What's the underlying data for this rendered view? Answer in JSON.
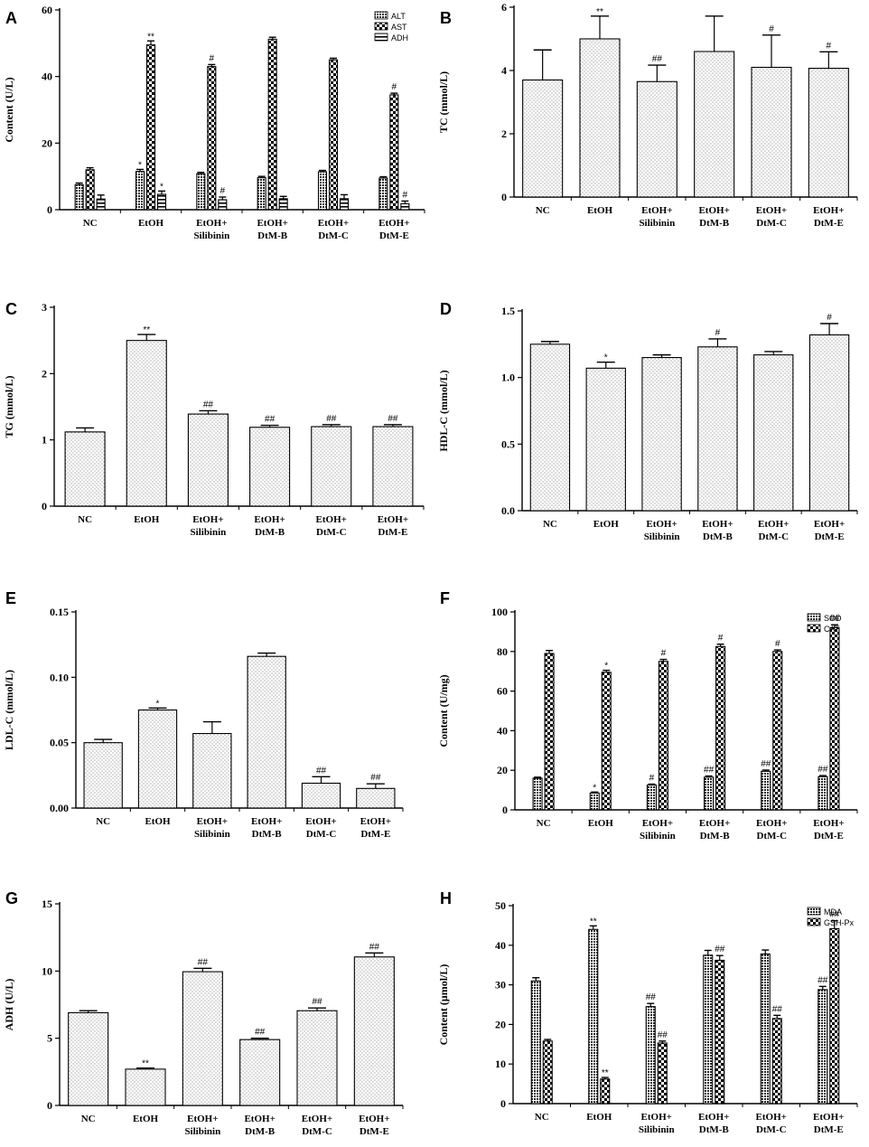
{
  "figure_title": "Figure panels A–H",
  "chart_data": [
    {
      "panel": "A",
      "type": "bar",
      "ylabel": "Content  (U/L)",
      "ylim": [
        0,
        60
      ],
      "yticks": [
        0,
        20,
        40,
        60
      ],
      "categories": [
        [
          "NC"
        ],
        [
          "EtOH"
        ],
        [
          "EtOH+",
          "Silibinin"
        ],
        [
          "EtOH+",
          "DtM-B"
        ],
        [
          "EtOH+",
          "DtM-C"
        ],
        [
          "EtOH+",
          "DtM-E"
        ]
      ],
      "series": [
        {
          "name": "ALT",
          "pattern": "dense",
          "values": [
            7.5,
            11.5,
            10.8,
            9.6,
            11.4,
            9.5
          ],
          "errors": [
            0.5,
            0.6,
            0.4,
            0.4,
            0.4,
            0.4
          ],
          "sig": [
            "",
            "*",
            "",
            "",
            "",
            ""
          ]
        },
        {
          "name": "AST",
          "pattern": "check",
          "values": [
            12.0,
            49.5,
            43.0,
            51.2,
            45.0,
            34.5
          ],
          "errors": [
            0.6,
            1.2,
            0.6,
            0.6,
            0.5,
            0.5
          ],
          "sig": [
            "",
            "**",
            "#",
            "",
            "",
            "#"
          ]
        },
        {
          "name": "ADH",
          "pattern": "stripe",
          "values": [
            3.2,
            4.6,
            3.0,
            3.3,
            3.3,
            1.8
          ],
          "errors": [
            1.2,
            1.0,
            0.8,
            0.7,
            1.2,
            0.8
          ],
          "sig": [
            "",
            "*",
            "#",
            "",
            "",
            "#"
          ]
        }
      ],
      "legend": [
        "ALT",
        "AST",
        "ADH"
      ]
    },
    {
      "panel": "B",
      "type": "bar",
      "ylabel": "TC (mmol/L)",
      "ylim": [
        0,
        6
      ],
      "yticks": [
        0,
        2,
        4,
        6
      ],
      "categories": [
        [
          "NC"
        ],
        [
          "EtOH"
        ],
        [
          "EtOH+",
          "Silibinin"
        ],
        [
          "EtOH+",
          "DtM-B"
        ],
        [
          "EtOH+",
          "DtM-C"
        ],
        [
          "EtOH+",
          "DtM-E"
        ]
      ],
      "series": [
        {
          "name": "TC",
          "pattern": "dots",
          "values": [
            3.7,
            5.0,
            3.65,
            4.6,
            4.1,
            4.07
          ],
          "errors": [
            0.95,
            0.72,
            0.52,
            1.12,
            1.02,
            0.52
          ],
          "sig": [
            "",
            "**",
            "##",
            "",
            "#",
            "#"
          ]
        }
      ],
      "legend": []
    },
    {
      "panel": "C",
      "type": "bar",
      "ylabel": "TG (mmol/L)",
      "ylim": [
        0,
        3
      ],
      "yticks": [
        0,
        1,
        2,
        3
      ],
      "categories": [
        [
          "NC"
        ],
        [
          "EtOH"
        ],
        [
          "EtOH+",
          "Silibinin"
        ],
        [
          "EtOH+",
          "DtM-B"
        ],
        [
          "EtOH+",
          "DtM-C"
        ],
        [
          "EtOH+",
          "DtM-E"
        ]
      ],
      "series": [
        {
          "name": "TG",
          "pattern": "dots",
          "values": [
            1.12,
            2.5,
            1.39,
            1.19,
            1.2,
            1.2
          ],
          "errors": [
            0.06,
            0.09,
            0.05,
            0.03,
            0.03,
            0.03
          ],
          "sig": [
            "",
            "**",
            "##",
            "##",
            "##",
            "##"
          ]
        }
      ],
      "legend": []
    },
    {
      "panel": "D",
      "type": "bar",
      "ylabel": "HDL-C (mmol/L)",
      "ylim": [
        0,
        1.5
      ],
      "yticks": [
        0.0,
        0.5,
        1.0,
        1.5
      ],
      "tick_format": 1,
      "categories": [
        [
          "NC"
        ],
        [
          "EtOH"
        ],
        [
          "EtOH+",
          "Silibinin"
        ],
        [
          "EtOH+",
          "DtM-B"
        ],
        [
          "EtOH+",
          "DtM-C"
        ],
        [
          "EtOH+",
          "DtM-E"
        ]
      ],
      "series": [
        {
          "name": "HDL-C",
          "pattern": "dots",
          "values": [
            1.25,
            1.07,
            1.15,
            1.23,
            1.17,
            1.32
          ],
          "errors": [
            0.02,
            0.045,
            0.02,
            0.06,
            0.025,
            0.085
          ],
          "sig": [
            "",
            "*",
            "",
            "#",
            "",
            "#"
          ]
        }
      ],
      "legend": []
    },
    {
      "panel": "E",
      "type": "bar",
      "ylabel": "LDL-C (mmol/L)",
      "ylim": [
        0,
        0.15
      ],
      "yticks": [
        0.0,
        0.05,
        0.1,
        0.15
      ],
      "tick_format": 2,
      "categories": [
        [
          "NC"
        ],
        [
          "EtOH"
        ],
        [
          "EtOH+",
          "Silibinin"
        ],
        [
          "EtOH+",
          "DtM-B"
        ],
        [
          "EtOH+",
          "DtM-C"
        ],
        [
          "EtOH+",
          "DtM-E"
        ]
      ],
      "series": [
        {
          "name": "LDL-C",
          "pattern": "dots",
          "values": [
            0.05,
            0.075,
            0.057,
            0.116,
            0.019,
            0.015
          ],
          "errors": [
            0.0025,
            0.0015,
            0.009,
            0.0025,
            0.005,
            0.0035
          ],
          "sig": [
            "",
            "*",
            "",
            "",
            "##",
            "##"
          ]
        }
      ],
      "legend": []
    },
    {
      "panel": "F",
      "type": "bar",
      "ylabel": "Content  (U/mg)",
      "ylim": [
        0,
        100
      ],
      "yticks": [
        0,
        20,
        40,
        60,
        80,
        100
      ],
      "categories": [
        [
          "NC"
        ],
        [
          "EtOH"
        ],
        [
          "EtOH+",
          "Silibinin"
        ],
        [
          "EtOH+",
          "DtM-B"
        ],
        [
          "EtOH+",
          "DtM-C"
        ],
        [
          "EtOH+",
          "DtM-E"
        ]
      ],
      "series": [
        {
          "name": "SOD",
          "pattern": "dense",
          "values": [
            16,
            8.5,
            12.5,
            16.5,
            19.5,
            16.8
          ],
          "errors": [
            0.5,
            0.5,
            0.5,
            0.6,
            0.6,
            0.5
          ],
          "sig": [
            "",
            "*",
            "#",
            "##",
            "##",
            "##"
          ]
        },
        {
          "name": "CAT",
          "pattern": "check",
          "values": [
            79,
            69.5,
            75,
            82.5,
            80,
            92
          ],
          "errors": [
            1.5,
            1.0,
            1.0,
            1.2,
            0.8,
            1.5
          ],
          "sig": [
            "",
            "*",
            "#",
            "#",
            "#",
            "##"
          ]
        }
      ],
      "legend": [
        "SOD",
        "CAT"
      ]
    },
    {
      "panel": "G",
      "type": "bar",
      "ylabel": "ADH  (U/L)",
      "ylim": [
        0,
        15
      ],
      "yticks": [
        0,
        5,
        10,
        15
      ],
      "categories": [
        [
          "NC"
        ],
        [
          "EtOH"
        ],
        [
          "EtOH+",
          "Silibinin"
        ],
        [
          "EtOH+",
          "DtM-B"
        ],
        [
          "EtOH+",
          "DtM-C"
        ],
        [
          "EtOH+",
          "DtM-E"
        ]
      ],
      "series": [
        {
          "name": "ADH",
          "pattern": "dots",
          "values": [
            6.9,
            2.7,
            9.95,
            4.9,
            7.05,
            11.05
          ],
          "errors": [
            0.15,
            0.08,
            0.25,
            0.1,
            0.2,
            0.3
          ],
          "sig": [
            "",
            "**",
            "##",
            "##",
            "##",
            "##"
          ]
        }
      ],
      "legend": []
    },
    {
      "panel": "H",
      "type": "bar",
      "ylabel": "Content  (μmol/L)",
      "ylim": [
        0,
        50
      ],
      "yticks": [
        0,
        10,
        20,
        30,
        40,
        50
      ],
      "categories": [
        [
          "NC"
        ],
        [
          "EtOH"
        ],
        [
          "EtOH+",
          "Silibinin"
        ],
        [
          "EtOH+",
          "DtM-B"
        ],
        [
          "EtOH+",
          "DtM-C"
        ],
        [
          "EtOH+",
          "DtM-E"
        ]
      ],
      "series": [
        {
          "name": "MDA",
          "pattern": "dense",
          "values": [
            31,
            44,
            24.5,
            37.5,
            37.8,
            28.8
          ],
          "errors": [
            0.8,
            0.9,
            0.8,
            1.2,
            1.0,
            0.8
          ],
          "sig": [
            "",
            "**",
            "##",
            "",
            "",
            "##"
          ]
        },
        {
          "name": "GSH-Px",
          "pattern": "check",
          "values": [
            15.8,
            6.2,
            15.3,
            36.2,
            21.5,
            44.2
          ],
          "errors": [
            0.4,
            0.4,
            0.5,
            1.2,
            0.8,
            2.0
          ],
          "sig": [
            "",
            "**",
            "##",
            "##",
            "##",
            "##"
          ]
        }
      ],
      "legend": [
        "MDA",
        "GSH-Px"
      ]
    }
  ]
}
